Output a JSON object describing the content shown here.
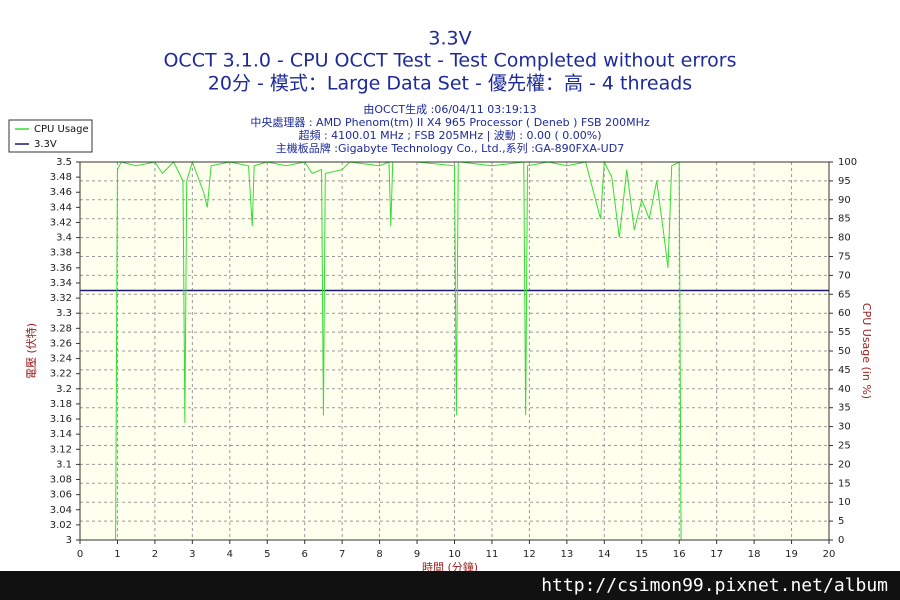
{
  "chart_data": {
    "type": "line",
    "title": "3.3V",
    "subtitle": "OCCT 3.1.0 - CPU OCCT Test - Test Completed without errors",
    "subtitle2": "20分 - 模式：Large Data Set - 優先權：高 - 4 threads",
    "info": [
      "由OCCT生成 :06/04/11 03:19:13",
      "中央處理器 : AMD Phenom(tm) II X4 965 Processor ( Deneb ) FSB 200MHz",
      "超頻 : 4100.01 MHz ; FSB 205MHz | 波動 : 0.00 ( 0.00%)",
      "主機板品牌 :Gigabyte Technology Co., Ltd.,系列 :GA-890FXA-UD7"
    ],
    "xlabel": "時間 (分鐘)",
    "ylabel": "電壓 (伏特)",
    "y2label": "CPU Usage (in %)",
    "watermark": "http://csimon99.pixnet.net/album",
    "grid": true,
    "legend": "upper-left",
    "xlim": [
      0,
      20
    ],
    "xticks": [
      0,
      1,
      2,
      3,
      4,
      5,
      6,
      7,
      8,
      9,
      10,
      11,
      12,
      13,
      14,
      15,
      16,
      17,
      18,
      19,
      20
    ],
    "ylim": [
      3,
      3.5
    ],
    "yticks": [
      3,
      3.02,
      3.04,
      3.06,
      3.08,
      3.1,
      3.12,
      3.14,
      3.16,
      3.18,
      3.2,
      3.22,
      3.24,
      3.26,
      3.28,
      3.3,
      3.32,
      3.34,
      3.36,
      3.38,
      3.4,
      3.42,
      3.44,
      3.46,
      3.48,
      3.5
    ],
    "y2lim": [
      0,
      100
    ],
    "y2ticks": [
      0,
      5,
      10,
      15,
      20,
      25,
      30,
      35,
      40,
      45,
      50,
      55,
      60,
      65,
      70,
      75,
      80,
      85,
      90,
      95,
      100
    ],
    "x": [
      0,
      0.95,
      1.0,
      1.1,
      1.5,
      2.0,
      2.2,
      2.5,
      2.75,
      2.8,
      2.85,
      3.0,
      3.3,
      3.4,
      3.5,
      4.0,
      4.5,
      4.6,
      4.65,
      5.0,
      5.5,
      6.0,
      6.2,
      6.45,
      6.5,
      6.55,
      7.0,
      7.2,
      8.0,
      8.25,
      8.3,
      8.35,
      9.0,
      10.0,
      10.05,
      10.1,
      10.15,
      11.0,
      11.85,
      11.9,
      11.95,
      12.5,
      13.0,
      13.5,
      13.9,
      14.0,
      14.2,
      14.4,
      14.6,
      14.8,
      15.0,
      15.2,
      15.4,
      15.6,
      15.7,
      15.8,
      16.0,
      16.05,
      17,
      18,
      19,
      20
    ],
    "series": [
      {
        "name": "CPU Usage",
        "color": "#33dd33",
        "axis": "y2",
        "values": [
          0,
          0,
          98,
          100,
          99,
          100,
          97,
          100,
          95,
          31,
          95,
          100,
          92,
          88,
          99,
          100,
          99,
          83,
          99,
          100,
          99,
          100,
          97,
          98,
          33,
          97,
          98,
          100,
          99,
          100,
          83,
          100,
          100,
          99,
          33,
          100,
          100,
          99,
          100,
          33,
          99,
          100,
          99,
          100,
          85,
          100,
          96,
          80,
          98,
          82,
          90,
          85,
          95,
          80,
          72,
          99,
          100,
          0,
          0,
          0,
          0,
          0
        ]
      },
      {
        "name": "3.3V",
        "color": "#1a1a6e",
        "values": [
          3.33,
          3.33,
          3.33,
          3.33,
          3.33,
          3.33,
          3.33,
          3.33,
          3.33,
          3.33,
          3.33,
          3.33,
          3.33,
          3.33,
          3.33,
          3.33,
          3.33,
          3.33,
          3.33,
          3.33,
          3.33,
          3.33,
          3.33,
          3.33,
          3.33,
          3.33,
          3.33,
          3.33,
          3.33,
          3.33,
          3.33,
          3.33,
          3.33,
          3.33,
          3.33,
          3.33,
          3.33,
          3.33,
          3.33,
          3.33,
          3.33,
          3.33,
          3.33,
          3.33,
          3.33,
          3.33,
          3.33,
          3.33,
          3.33,
          3.33,
          3.33,
          3.33,
          3.33,
          3.33,
          3.33,
          3.33,
          3.33,
          3.33,
          3.33,
          3.33,
          3.33,
          3.33
        ]
      }
    ]
  }
}
